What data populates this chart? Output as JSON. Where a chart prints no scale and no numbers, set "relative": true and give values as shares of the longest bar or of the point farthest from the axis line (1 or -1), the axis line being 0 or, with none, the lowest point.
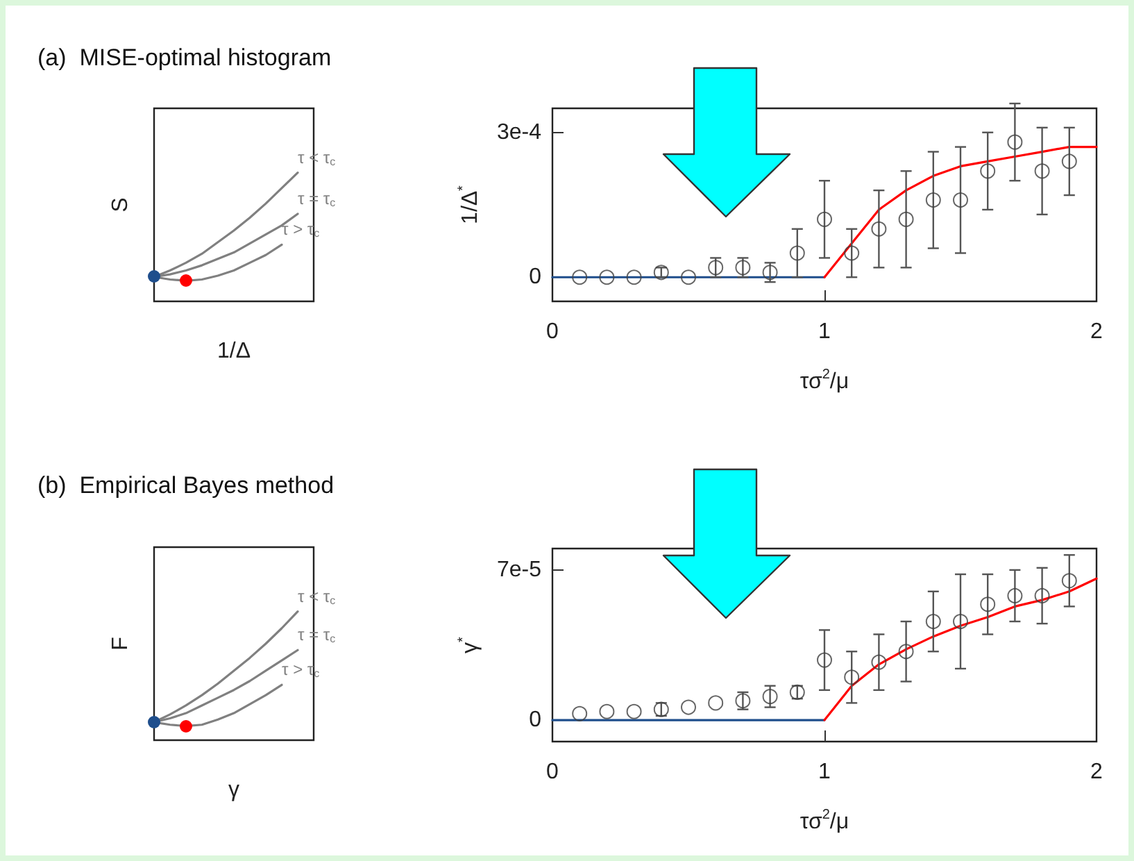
{
  "chart_data": [
    {
      "type": "line",
      "relative": true,
      "title": "(a)  MISE-optimal histogram",
      "xlabel": "1/Δ",
      "ylabel": "S",
      "categories": [
        null,
        null,
        null,
        null,
        null,
        null,
        null,
        null,
        null,
        null,
        null
      ],
      "grid": false,
      "legend": false,
      "series": [
        {
          "name": "τ < τ$_{c}$",
          "color": "#808080",
          "values": [
            0.19,
            0.24,
            0.3,
            0.37,
            0.46,
            0.55,
            0.65,
            0.76,
            0.88,
            1.0,
            null
          ]
        },
        {
          "name": "τ = τ$_{c}$",
          "color": "#808080",
          "values": [
            0.19,
            0.21,
            0.24,
            0.28,
            0.33,
            0.38,
            0.45,
            0.52,
            0.59,
            0.68,
            null
          ]
        },
        {
          "name": "τ > τ$_{c}$",
          "color": "#808080",
          "values": [
            0.19,
            0.17,
            0.16,
            0.17,
            0.2,
            0.24,
            0.3,
            0.36,
            0.44,
            null,
            null
          ]
        }
      ]
    },
    {
      "type": "scatter",
      "xlabel": "τσ$^{2}$/μ",
      "ylabel": "1/Δ$^{*}$",
      "xlim": [
        0,
        2
      ],
      "xticks": [
        0,
        1,
        2
      ],
      "ylim": [
        -5e-05,
        0.00035
      ],
      "yticks": [
        0,
        {
          "value": 0.0003,
          "label": "3e-4"
        }
      ],
      "grid": false,
      "legend": false,
      "series": [
        {
          "type": "scatter",
          "color": "#404040",
          "marker": "circle",
          "x": [
            0.1,
            0.2,
            0.3,
            0.4,
            0.5,
            0.6,
            0.7,
            0.8,
            0.9,
            1.0,
            1.1,
            1.2,
            1.3,
            1.4,
            1.5,
            1.6,
            1.7,
            1.8,
            1.9
          ],
          "values": [
            0,
            0,
            0,
            1e-05,
            0,
            2e-05,
            2e-05,
            1e-05,
            5e-05,
            0.00012,
            5e-05,
            0.0001,
            0.00012,
            0.00016,
            0.00016,
            0.00022,
            0.00028,
            0.00022,
            0.00024
          ],
          "errors": [
            null,
            null,
            null,
            1e-05,
            null,
            2e-05,
            2e-05,
            2e-05,
            5e-05,
            8e-05,
            5e-05,
            8e-05,
            0.0001,
            0.0001,
            0.00011,
            8e-05,
            8e-05,
            9e-05,
            7e-05
          ]
        },
        {
          "type": "line",
          "color": "#1f4e8c",
          "marker": "none",
          "x": [
            0,
            1
          ],
          "values": [
            0,
            0
          ]
        },
        {
          "type": "line",
          "color": "#ff0000",
          "marker": "none",
          "x": [
            1,
            1.1,
            1.2,
            1.3,
            1.4,
            1.5,
            1.6,
            1.7,
            1.8,
            1.9,
            2
          ],
          "values": [
            0,
            7e-05,
            0.00014,
            0.00018,
            0.00021,
            0.00023,
            0.00024,
            0.00025,
            0.00026,
            0.00027,
            0.00027
          ]
        }
      ]
    },
    {
      "type": "line",
      "relative": true,
      "title": "(b)  Empirical Bayes method",
      "xlabel": "γ",
      "ylabel": "F",
      "categories": [
        null,
        null,
        null,
        null,
        null,
        null,
        null,
        null,
        null,
        null,
        null
      ],
      "grid": false,
      "legend": false,
      "series": [
        {
          "name": "τ < τ$_{c}$",
          "color": "#808080",
          "values": [
            0.14,
            0.2,
            0.27,
            0.35,
            0.44,
            0.54,
            0.64,
            0.75,
            0.87,
            1.0,
            null
          ]
        },
        {
          "name": "τ = τ$_{c}$",
          "color": "#808080",
          "values": [
            0.14,
            0.17,
            0.21,
            0.27,
            0.33,
            0.39,
            0.46,
            0.54,
            0.62,
            0.7,
            null
          ]
        },
        {
          "name": "τ > τ$_{c}$",
          "color": "#808080",
          "values": [
            0.14,
            0.12,
            0.11,
            0.12,
            0.16,
            0.21,
            0.28,
            0.35,
            0.43,
            null,
            null
          ]
        }
      ]
    },
    {
      "type": "scatter",
      "xlabel": "τσ$^{2}$/μ",
      "ylabel": "γ$^{*}$",
      "xlim": [
        0,
        2
      ],
      "xticks": [
        0,
        1,
        2
      ],
      "ylim": [
        -1e-05,
        8e-05
      ],
      "yticks": [
        0,
        {
          "value": 7e-05,
          "label": "7e-5"
        }
      ],
      "grid": false,
      "legend": false,
      "series": [
        {
          "type": "scatter",
          "color": "#404040",
          "marker": "circle",
          "x": [
            0.1,
            0.2,
            0.3,
            0.4,
            0.5,
            0.6,
            0.7,
            0.8,
            0.9,
            1.0,
            1.1,
            1.2,
            1.3,
            1.4,
            1.5,
            1.6,
            1.7,
            1.8,
            1.9
          ],
          "values": [
            3e-06,
            4e-06,
            4e-06,
            5e-06,
            6e-06,
            8e-06,
            9e-06,
            1.1e-05,
            1.3e-05,
            2.8e-05,
            2e-05,
            2.7e-05,
            3.2e-05,
            4.6e-05,
            4.6e-05,
            5.4e-05,
            5.8e-05,
            5.8e-05,
            6.5e-05
          ],
          "errors": [
            null,
            null,
            null,
            3e-06,
            null,
            null,
            4e-06,
            5e-06,
            3e-06,
            1.4e-05,
            1.2e-05,
            1.3e-05,
            1.4e-05,
            1.4e-05,
            2.2e-05,
            1.4e-05,
            1.2e-05,
            1.3e-05,
            1.2e-05
          ]
        },
        {
          "type": "line",
          "color": "#1f4e8c",
          "marker": "none",
          "x": [
            0,
            1
          ],
          "values": [
            0,
            0
          ]
        },
        {
          "type": "line",
          "color": "#ff0000",
          "marker": "none",
          "x": [
            1,
            1.1,
            1.2,
            1.3,
            1.4,
            1.5,
            1.6,
            1.7,
            1.8,
            1.9,
            2
          ],
          "values": [
            0,
            1.6e-05,
            2.6e-05,
            3.3e-05,
            3.9e-05,
            4.4e-05,
            4.8e-05,
            5.3e-05,
            5.6e-05,
            6e-05,
            6.6e-05
          ]
        }
      ]
    }
  ]
}
